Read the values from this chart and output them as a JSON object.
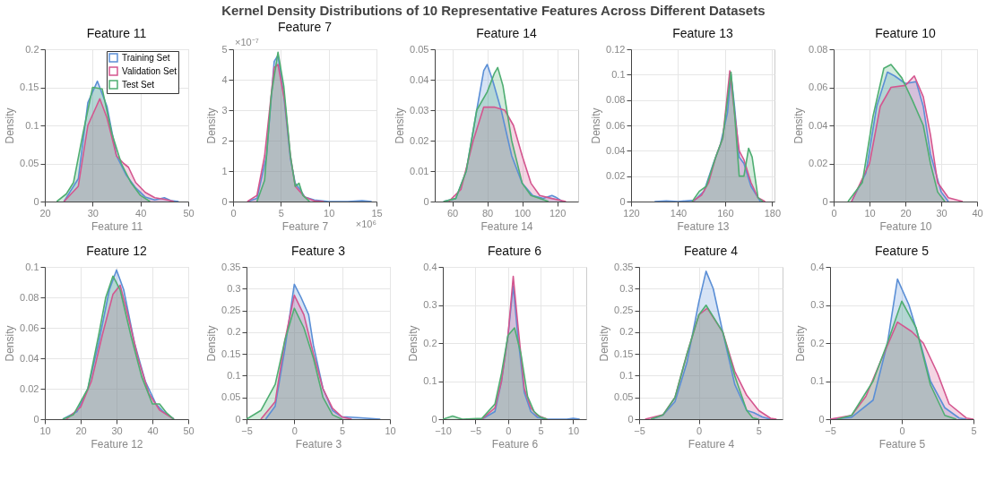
{
  "chart_data": [
    {
      "type": "area",
      "title": "Feature 11",
      "xlabel": "Feature 11",
      "ylabel": "Density",
      "annotations": [
        "Kernel Density Distributions of 10 Representative Features Across Different Datasets"
      ],
      "xlim": [
        20,
        50
      ],
      "xticks": [
        20,
        30,
        40,
        50
      ],
      "ylim": [
        0,
        0.2
      ],
      "yticks": [
        0,
        0.05,
        0.1,
        0.15,
        0.2
      ],
      "grid": true,
      "legend": "top right",
      "series": [
        {
          "name": "Training Set",
          "color": "#5b8fd6",
          "x": [
            24,
            27,
            29,
            31,
            33,
            35,
            37,
            39,
            41,
            43,
            45,
            46.5,
            48
          ],
          "values": [
            0,
            0.03,
            0.13,
            0.158,
            0.125,
            0.06,
            0.035,
            0.018,
            0.006,
            0.002,
            0.005,
            0.001,
            0
          ]
        },
        {
          "name": "Validation Set",
          "color": "#d4568f",
          "x": [
            24,
            27,
            29,
            31.5,
            33,
            35,
            36.5,
            37.5,
            39,
            41,
            43,
            45,
            47
          ],
          "values": [
            0,
            0.02,
            0.1,
            0.135,
            0.11,
            0.06,
            0.05,
            0.045,
            0.025,
            0.012,
            0.005,
            0.003,
            0
          ]
        },
        {
          "name": "Test Set",
          "color": "#4fae72",
          "x": [
            22.5,
            24.5,
            26,
            28,
            30,
            32,
            34,
            36,
            38,
            40,
            42
          ],
          "values": [
            0,
            0.01,
            0.025,
            0.09,
            0.15,
            0.148,
            0.09,
            0.05,
            0.025,
            0.008,
            0
          ]
        }
      ]
    },
    {
      "type": "area",
      "title": "Feature 7",
      "xlabel": "Feature 7",
      "ylabel": "Density",
      "annotations": [
        "×10⁻⁷",
        "×10⁶"
      ],
      "xlim": [
        0,
        15
      ],
      "xticks": [
        0,
        5,
        10,
        15
      ],
      "ylim": [
        0,
        5
      ],
      "yticks": [
        0,
        1,
        2,
        3,
        4,
        5
      ],
      "grid": true,
      "series": [
        {
          "color": "#5b8fd6",
          "x": [
            1.5,
            2.5,
            3.5,
            4.3,
            4.7,
            5.3,
            6,
            6.5,
            7,
            7.5,
            8.5,
            10,
            12,
            13.5,
            14.5
          ],
          "values": [
            0,
            0.1,
            1.5,
            4.6,
            4.8,
            3.5,
            1.4,
            0.6,
            0.4,
            0.15,
            0.05,
            0,
            0,
            0.03,
            0
          ]
        },
        {
          "color": "#d4568f",
          "x": [
            1.5,
            2.5,
            3.3,
            4.3,
            4.7,
            5.4,
            6,
            6.5,
            7.5,
            8.5,
            9.5
          ],
          "values": [
            0,
            0.2,
            1.5,
            4.4,
            4.5,
            3.3,
            1.5,
            0.5,
            0.15,
            0.02,
            0
          ]
        },
        {
          "color": "#4fae72",
          "x": [
            2.5,
            3.3,
            4,
            4.7,
            5.3,
            6,
            6.5,
            6.9,
            7.3,
            8
          ],
          "values": [
            0,
            0.7,
            3.5,
            4.9,
            3.8,
            1.5,
            0.5,
            0.6,
            0.2,
            0
          ]
        }
      ]
    },
    {
      "type": "area",
      "title": "Feature 14",
      "xlabel": "Feature 14",
      "ylabel": "Density",
      "xlim": [
        50,
        132
      ],
      "xticks": [
        60,
        80,
        100,
        120
      ],
      "ylim": [
        0,
        0.05
      ],
      "yticks": [
        0,
        0.01,
        0.02,
        0.03,
        0.04,
        0.05
      ],
      "grid": true,
      "series": [
        {
          "color": "#5b8fd6",
          "x": [
            55,
            62,
            68,
            74,
            78,
            80,
            83,
            88,
            94,
            100,
            106,
            112,
            117,
            119,
            123
          ],
          "values": [
            0,
            0.001,
            0.01,
            0.03,
            0.043,
            0.045,
            0.04,
            0.03,
            0.015,
            0.006,
            0.002,
            0.001,
            0.002,
            0.0015,
            0
          ]
        },
        {
          "color": "#d4568f",
          "x": [
            58,
            65,
            72,
            78,
            84,
            90,
            95,
            100,
            105,
            110,
            117,
            125
          ],
          "values": [
            0,
            0.004,
            0.02,
            0.031,
            0.031,
            0.03,
            0.025,
            0.015,
            0.006,
            0.002,
            0.001,
            0
          ]
        },
        {
          "color": "#4fae72",
          "x": [
            55,
            62,
            68,
            74,
            80,
            84,
            86,
            89,
            94,
            100,
            105,
            110,
            115
          ],
          "values": [
            0,
            0.001,
            0.01,
            0.03,
            0.036,
            0.042,
            0.044,
            0.038,
            0.02,
            0.006,
            0.002,
            0.001,
            0
          ]
        }
      ]
    },
    {
      "type": "area",
      "title": "Feature 13",
      "xlabel": "Feature 13",
      "ylabel": "Density",
      "xlim": [
        120,
        181
      ],
      "xticks": [
        120,
        140,
        160,
        180
      ],
      "ylim": [
        0,
        0.12
      ],
      "yticks": [
        0,
        0.02,
        0.04,
        0.06,
        0.08,
        0.1,
        0.12
      ],
      "grid": true,
      "series": [
        {
          "color": "#5b8fd6",
          "x": [
            130,
            135,
            140,
            147,
            151,
            155,
            158,
            161,
            162.5,
            164,
            166,
            168,
            171,
            175
          ],
          "values": [
            0,
            0.0005,
            0,
            0.001,
            0.008,
            0.03,
            0.045,
            0.07,
            0.1,
            0.075,
            0.035,
            0.03,
            0.012,
            0
          ]
        },
        {
          "color": "#d4568f",
          "x": [
            146,
            150,
            153,
            156,
            159,
            162,
            164,
            166,
            168,
            171,
            174,
            177
          ],
          "values": [
            0,
            0.005,
            0.015,
            0.035,
            0.05,
            0.103,
            0.07,
            0.04,
            0.033,
            0.015,
            0.003,
            0
          ]
        },
        {
          "color": "#4fae72",
          "x": [
            146,
            149,
            152,
            156,
            159,
            162.5,
            164,
            166,
            168,
            170,
            171.5,
            174,
            176
          ],
          "values": [
            0,
            0.008,
            0.012,
            0.035,
            0.05,
            0.102,
            0.07,
            0.02,
            0.02,
            0.042,
            0.035,
            0.003,
            0
          ]
        }
      ]
    },
    {
      "type": "area",
      "title": "Feature 10",
      "xlabel": "Feature 10",
      "ylabel": "Density",
      "xlim": [
        0,
        40
      ],
      "xticks": [
        0,
        10,
        20,
        30,
        40
      ],
      "ylim": [
        0,
        0.08
      ],
      "yticks": [
        0,
        0.02,
        0.04,
        0.06,
        0.08
      ],
      "grid": true,
      "series": [
        {
          "color": "#5b8fd6",
          "x": [
            5,
            9,
            12,
            15,
            17,
            20,
            23,
            25,
            27,
            30,
            32
          ],
          "values": [
            0,
            0.015,
            0.05,
            0.068,
            0.066,
            0.062,
            0.063,
            0.05,
            0.025,
            0.005,
            0
          ]
        },
        {
          "color": "#d4568f",
          "x": [
            5,
            10,
            13,
            16,
            20,
            22.5,
            25,
            27,
            29,
            32,
            36
          ],
          "values": [
            0,
            0.02,
            0.05,
            0.06,
            0.061,
            0.066,
            0.055,
            0.035,
            0.01,
            0.002,
            0
          ]
        },
        {
          "color": "#4fae72",
          "x": [
            4,
            8,
            11,
            14,
            16,
            19,
            22,
            25,
            27,
            29,
            31
          ],
          "values": [
            0,
            0.01,
            0.045,
            0.07,
            0.072,
            0.065,
            0.053,
            0.04,
            0.02,
            0.005,
            0
          ]
        }
      ]
    },
    {
      "type": "area",
      "title": "Feature 12",
      "xlabel": "Feature 12",
      "ylabel": "Density",
      "xlim": [
        10,
        50
      ],
      "xticks": [
        10,
        20,
        30,
        40,
        50
      ],
      "ylim": [
        0,
        0.1
      ],
      "yticks": [
        0,
        0.02,
        0.04,
        0.06,
        0.08,
        0.1
      ],
      "grid": true,
      "series": [
        {
          "color": "#5b8fd6",
          "x": [
            15,
            19,
            22,
            25,
            28,
            30,
            32,
            35,
            38,
            41,
            43,
            46
          ],
          "values": [
            0,
            0.005,
            0.02,
            0.05,
            0.085,
            0.098,
            0.085,
            0.05,
            0.025,
            0.01,
            0.005,
            0
          ]
        },
        {
          "color": "#d4568f",
          "x": [
            16,
            20,
            23,
            26,
            29,
            31,
            33,
            36,
            39,
            42,
            46
          ],
          "values": [
            0,
            0.008,
            0.025,
            0.055,
            0.082,
            0.088,
            0.07,
            0.04,
            0.017,
            0.006,
            0
          ]
        },
        {
          "color": "#4fae72",
          "x": [
            15,
            18,
            22,
            25,
            27,
            29,
            31,
            34,
            37,
            40,
            42,
            44,
            46
          ],
          "values": [
            0,
            0.003,
            0.02,
            0.055,
            0.08,
            0.094,
            0.085,
            0.055,
            0.028,
            0.01,
            0.01,
            0.004,
            0
          ]
        }
      ]
    },
    {
      "type": "area",
      "title": "Feature 3",
      "xlabel": "Feature 3",
      "ylabel": "Density",
      "xlim": [
        -5,
        10
      ],
      "xticks": [
        -5,
        0,
        5,
        10
      ],
      "ylim": [
        0,
        0.35
      ],
      "yticks": [
        0,
        0.05,
        0.1,
        0.15,
        0.2,
        0.25,
        0.3,
        0.35
      ],
      "grid": true,
      "series": [
        {
          "color": "#5b8fd6",
          "x": [
            -3,
            -2,
            -1,
            0,
            0.7,
            1.5,
            2,
            3,
            4,
            5,
            5.5,
            7,
            9
          ],
          "values": [
            0,
            0.03,
            0.16,
            0.31,
            0.28,
            0.24,
            0.17,
            0.07,
            0.02,
            0.005,
            0.005,
            0.003,
            0
          ]
        },
        {
          "color": "#d4568f",
          "x": [
            -3.5,
            -2,
            -1,
            0,
            1,
            2,
            3,
            4,
            5,
            6
          ],
          "values": [
            0,
            0.04,
            0.18,
            0.285,
            0.24,
            0.15,
            0.07,
            0.025,
            0.005,
            0
          ]
        },
        {
          "color": "#4fae72",
          "x": [
            -5,
            -3.5,
            -2,
            -1,
            0,
            1,
            2,
            3,
            4,
            5
          ],
          "values": [
            0,
            0.02,
            0.08,
            0.18,
            0.255,
            0.21,
            0.14,
            0.05,
            0.01,
            0
          ]
        }
      ]
    },
    {
      "type": "area",
      "title": "Feature 6",
      "xlabel": "Feature 6",
      "ylabel": "Density",
      "xlim": [
        -10,
        12
      ],
      "xticks": [
        -10,
        -5,
        0,
        5,
        10
      ],
      "ylim": [
        0,
        0.4
      ],
      "yticks": [
        0,
        0.1,
        0.2,
        0.3,
        0.4
      ],
      "grid": true,
      "series": [
        {
          "color": "#5b8fd6",
          "x": [
            -4,
            -2,
            -1,
            0,
            0.8,
            1.5,
            2.5,
            3.5,
            4.5,
            6,
            9,
            10,
            11
          ],
          "values": [
            0,
            0.02,
            0.1,
            0.22,
            0.35,
            0.22,
            0.07,
            0.02,
            0.005,
            0,
            0,
            0.002,
            0
          ]
        },
        {
          "color": "#d4568f",
          "x": [
            -4,
            -2,
            -1,
            0,
            0.8,
            1.5,
            2.5,
            3.5,
            4.5,
            6
          ],
          "values": [
            0,
            0.03,
            0.1,
            0.22,
            0.375,
            0.25,
            0.08,
            0.03,
            0.01,
            0
          ]
        },
        {
          "color": "#4fae72",
          "x": [
            -10,
            -8.5,
            -7,
            -4,
            -2,
            -1,
            0,
            1,
            2,
            3,
            4,
            5,
            6
          ],
          "values": [
            0,
            0.008,
            0,
            0.002,
            0.04,
            0.12,
            0.22,
            0.24,
            0.17,
            0.06,
            0.02,
            0.005,
            0
          ]
        }
      ]
    },
    {
      "type": "area",
      "title": "Feature 4",
      "xlabel": "Feature 4",
      "ylabel": "Density",
      "xlim": [
        -5,
        7
      ],
      "xticks": [
        -5,
        0,
        5
      ],
      "ylim": [
        0,
        0.35
      ],
      "yticks": [
        0,
        0.05,
        0.1,
        0.15,
        0.2,
        0.25,
        0.3,
        0.35
      ],
      "grid": true,
      "series": [
        {
          "color": "#5b8fd6",
          "x": [
            -4,
            -3,
            -2,
            -1,
            0,
            0.6,
            1.2,
            2,
            3,
            4,
            4.6,
            5.3,
            6
          ],
          "values": [
            0,
            0.01,
            0.04,
            0.13,
            0.27,
            0.34,
            0.3,
            0.2,
            0.08,
            0.02,
            0.015,
            0.005,
            0
          ]
        },
        {
          "color": "#d4568f",
          "x": [
            -4.5,
            -3,
            -2,
            -1,
            0,
            0.7,
            2,
            3,
            4,
            5,
            6,
            6.5
          ],
          "values": [
            0,
            0.01,
            0.05,
            0.15,
            0.24,
            0.255,
            0.2,
            0.11,
            0.055,
            0.02,
            0.002,
            0
          ]
        },
        {
          "color": "#4fae72",
          "x": [
            -4,
            -3,
            -2,
            -1,
            0,
            0.6,
            2,
            3,
            4,
            4.5,
            5
          ],
          "values": [
            0,
            0.01,
            0.05,
            0.15,
            0.24,
            0.262,
            0.2,
            0.1,
            0.02,
            0.003,
            0
          ]
        }
      ]
    },
    {
      "type": "area",
      "title": "Feature 5",
      "xlabel": "Feature 5",
      "ylabel": "Density",
      "xlim": [
        -5,
        5
      ],
      "xticks": [
        -5,
        0,
        5
      ],
      "ylim": [
        0,
        0.4
      ],
      "yticks": [
        0,
        0.1,
        0.2,
        0.3,
        0.4
      ],
      "grid": true,
      "series": [
        {
          "color": "#5b8fd6",
          "x": [
            -5,
            -3.5,
            -2,
            -1,
            -0.3,
            0.5,
            1.3,
            2,
            3,
            4,
            4.5
          ],
          "values": [
            0,
            0.005,
            0.05,
            0.2,
            0.368,
            0.3,
            0.2,
            0.1,
            0.03,
            0.003,
            0
          ]
        },
        {
          "color": "#d4568f",
          "x": [
            -5,
            -3.5,
            -2.5,
            -1.5,
            -0.3,
            0.7,
            1.5,
            2.5,
            3.3,
            4.5,
            5
          ],
          "values": [
            0,
            0.01,
            0.06,
            0.15,
            0.255,
            0.23,
            0.2,
            0.12,
            0.04,
            0.003,
            0
          ]
        },
        {
          "color": "#4fae72",
          "x": [
            -4.5,
            -3.5,
            -2,
            -1,
            0,
            1,
            2,
            3,
            3.8
          ],
          "values": [
            0,
            0.01,
            0.1,
            0.2,
            0.31,
            0.24,
            0.09,
            0.01,
            0
          ]
        }
      ]
    }
  ]
}
